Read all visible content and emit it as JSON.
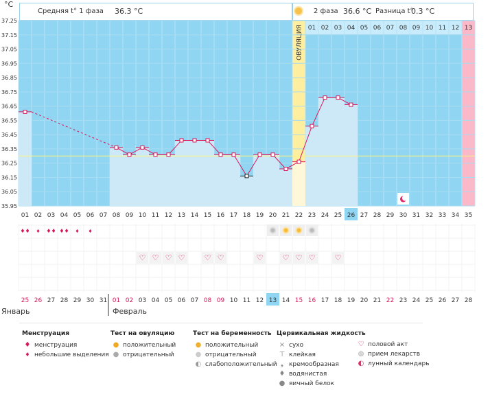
{
  "unit": "°C",
  "header": {
    "phase1_label": "Средняя t° 1 фаза",
    "phase1_value": "36.3 °C",
    "phase2_label": "2 фаза",
    "phase2_value": "36.6 °C",
    "diff_label": "Разница t°",
    "diff_value": "0.3 °C"
  },
  "ovulation_label": "ОВУЛЯЦИЯ",
  "phase2_days": [
    "01",
    "02",
    "03",
    "04",
    "05",
    "06",
    "07",
    "08",
    "09",
    "10",
    "11",
    "12",
    "13"
  ],
  "months": {
    "m1": "Январь",
    "m2": "Февраль"
  },
  "colors": {
    "sky": "#90d6f2",
    "bar": "#cde9f8",
    "ovulation": "#fdeea0",
    "pink": "#fbb8c8",
    "line": "#d8175a",
    "mid": "#fff27a"
  },
  "chart_data": {
    "type": "line",
    "ylim": [
      35.95,
      37.25
    ],
    "y_ticks": [
      "37.25",
      "37.15",
      "37.05",
      "36.95",
      "36.85",
      "36.75",
      "36.65",
      "36.55",
      "36.45",
      "36.35",
      "36.25",
      "36.15",
      "36.05",
      "35.95"
    ],
    "cycle_days": [
      "01",
      "02",
      "03",
      "04",
      "05",
      "06",
      "07",
      "08",
      "09",
      "10",
      "11",
      "12",
      "13",
      "14",
      "15",
      "16",
      "17",
      "18",
      "19",
      "20",
      "21",
      "22",
      "23",
      "24",
      "25",
      "26",
      "27",
      "28",
      "29",
      "30",
      "31",
      "32",
      "33",
      "34",
      "35"
    ],
    "dates": [
      "25",
      "26",
      "27",
      "28",
      "29",
      "30",
      "31",
      "01",
      "02",
      "03",
      "04",
      "05",
      "06",
      "07",
      "08",
      "09",
      "10",
      "11",
      "12",
      "13",
      "14",
      "15",
      "16",
      "17",
      "18",
      "19",
      "20",
      "21",
      "22",
      "23",
      "24",
      "25",
      "26",
      "27",
      "28"
    ],
    "red_dates": [
      0,
      1,
      7,
      8,
      14,
      15,
      21,
      22,
      28
    ],
    "today_index": 25,
    "ovulation_index": 21,
    "coverline": 36.3,
    "temperatures": [
      36.61,
      null,
      null,
      null,
      null,
      null,
      null,
      36.36,
      36.31,
      36.36,
      36.31,
      36.31,
      36.41,
      36.41,
      36.41,
      36.31,
      36.31,
      36.16,
      36.31,
      36.31,
      36.21,
      36.26,
      36.51,
      36.71,
      36.71,
      36.66,
      null,
      null,
      null,
      null,
      null,
      null,
      null,
      null,
      null
    ],
    "marker_black_index": 17,
    "moon_index": 29,
    "menstruation": [
      2,
      1,
      2,
      2,
      1,
      1,
      0,
      0,
      0,
      0,
      0,
      0,
      0,
      0,
      0,
      0,
      0,
      0,
      0,
      0,
      0,
      0,
      0,
      0,
      0,
      0,
      0,
      0,
      0,
      0,
      0,
      0,
      0,
      0,
      0
    ],
    "ovulation_test": {
      "19": "neg",
      "20": "pos",
      "21": "pos",
      "22": "neg"
    },
    "intercourse": [
      9,
      10,
      11,
      12,
      14,
      15,
      18,
      20,
      21,
      22,
      24
    ]
  },
  "legend": {
    "col1": {
      "title": "Менструация",
      "items": [
        "менструация",
        "небольшие выделения"
      ]
    },
    "col2": {
      "title": "Тест на овуляцию",
      "items": [
        "положительный",
        "отрицательный"
      ]
    },
    "col3": {
      "title": "Тест на беременность",
      "items": [
        "положительный",
        "отрицательный",
        "слабоположительный"
      ]
    },
    "col4": {
      "title": "Цервикальная жидкость",
      "items": [
        "сухо",
        "клейкая",
        "кремообразная",
        "водянистая",
        "яичный белок"
      ]
    },
    "col5": {
      "items": [
        "половой акт",
        "прием лекарств",
        "лунный календарь"
      ]
    }
  },
  "icons": {
    "m1": "blood-drops-icon",
    "m2": "small-drop-icon",
    "o1": "sun-positive-icon",
    "o2": "sun-negative-icon",
    "p1": "test-positive-icon",
    "p2": "test-negative-icon",
    "p3": "test-weak-icon",
    "c1": "cross-icon",
    "c2": "sticky-icon",
    "c3": "creamy-icon",
    "c4": "watery-icon",
    "c5": "eggwhite-icon",
    "x1": "heart-icon",
    "x2": "pill-icon",
    "x3": "moon-icon"
  }
}
